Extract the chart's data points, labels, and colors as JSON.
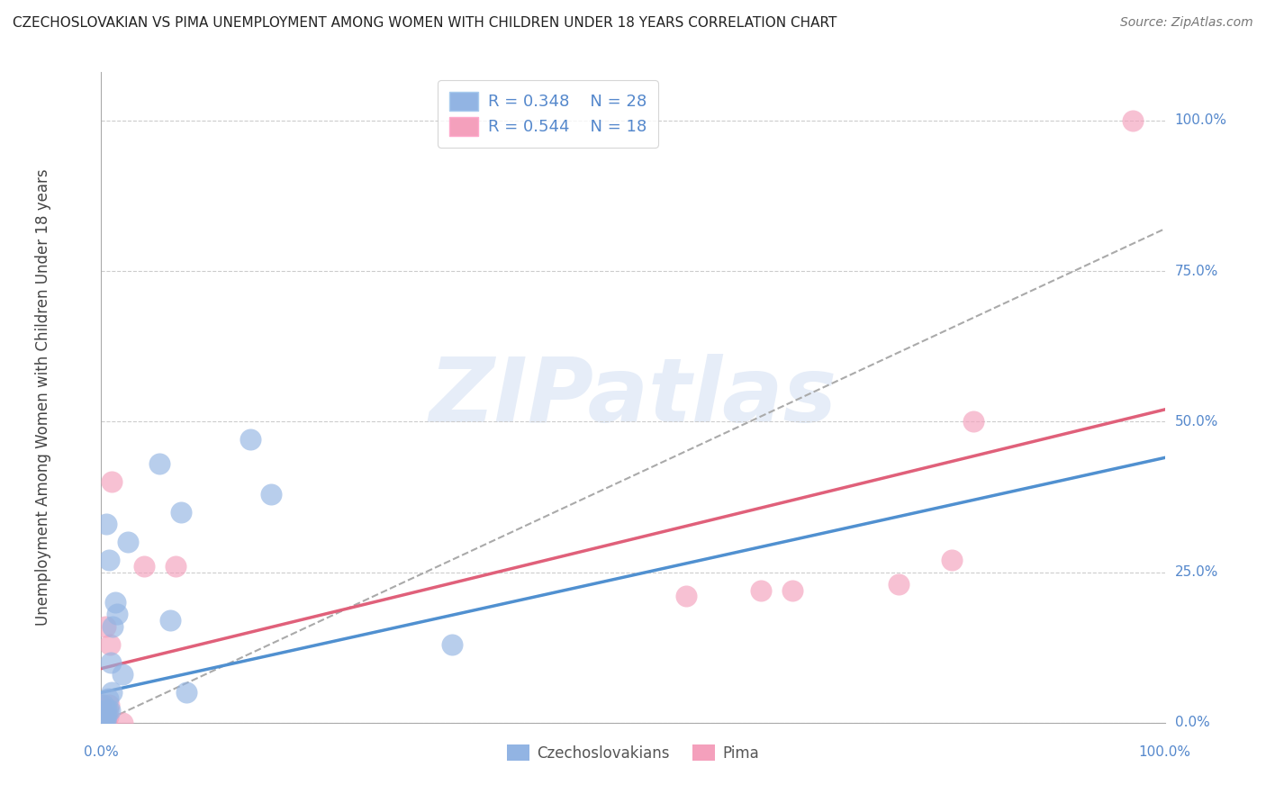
{
  "title": "CZECHOSLOVAKIAN VS PIMA UNEMPLOYMENT AMONG WOMEN WITH CHILDREN UNDER 18 YEARS CORRELATION CHART",
  "source": "Source: ZipAtlas.com",
  "ylabel": "Unemployment Among Women with Children Under 18 years",
  "background_color": "#ffffff",
  "grid_color": "#cccccc",
  "watermark_text": "ZIPatlas",
  "czech_color": "#92b4e3",
  "pima_color": "#f4a0bc",
  "czech_line_color": "#5090d0",
  "pima_line_color": "#e0607a",
  "dashed_line_color": "#aaaaaa",
  "right_label_color": "#5588cc",
  "legend_R_czech": "R = 0.348",
  "legend_N_czech": "N = 28",
  "legend_R_pima": "R = 0.544",
  "legend_N_pima": "N = 18",
  "ytick_labels": [
    "0.0%",
    "25.0%",
    "50.0%",
    "75.0%",
    "100.0%"
  ],
  "ytick_values": [
    0.0,
    0.25,
    0.5,
    0.75,
    1.0
  ],
  "xlim": [
    0.0,
    1.0
  ],
  "ylim": [
    0.0,
    1.08
  ],
  "czech_x": [
    0.0,
    0.001,
    0.002,
    0.002,
    0.003,
    0.004,
    0.004,
    0.005,
    0.005,
    0.006,
    0.006,
    0.007,
    0.008,
    0.009,
    0.01,
    0.011,
    0.013,
    0.015,
    0.02,
    0.025,
    0.055,
    0.065,
    0.075,
    0.08,
    0.14,
    0.16,
    0.33,
    0.005
  ],
  "czech_y": [
    0.02,
    0.01,
    0.0,
    0.03,
    0.01,
    0.0,
    0.02,
    0.01,
    0.02,
    0.02,
    0.04,
    0.27,
    0.02,
    0.1,
    0.05,
    0.16,
    0.2,
    0.18,
    0.08,
    0.3,
    0.43,
    0.17,
    0.35,
    0.05,
    0.47,
    0.38,
    0.13,
    0.33
  ],
  "pima_x": [
    0.0,
    0.002,
    0.004,
    0.005,
    0.006,
    0.007,
    0.008,
    0.01,
    0.02,
    0.04,
    0.07,
    0.55,
    0.62,
    0.65,
    0.75,
    0.8,
    0.82,
    0.97
  ],
  "pima_y": [
    0.03,
    0.01,
    0.16,
    0.0,
    0.01,
    0.03,
    0.13,
    0.4,
    0.0,
    0.26,
    0.26,
    0.21,
    0.22,
    0.22,
    0.23,
    0.27,
    0.5,
    1.0
  ],
  "czech_trend": [
    0.0,
    1.0,
    0.05,
    0.44
  ],
  "pima_trend": [
    0.0,
    1.0,
    0.09,
    0.52
  ],
  "dashed_trend": [
    0.0,
    1.0,
    0.0,
    0.82
  ]
}
